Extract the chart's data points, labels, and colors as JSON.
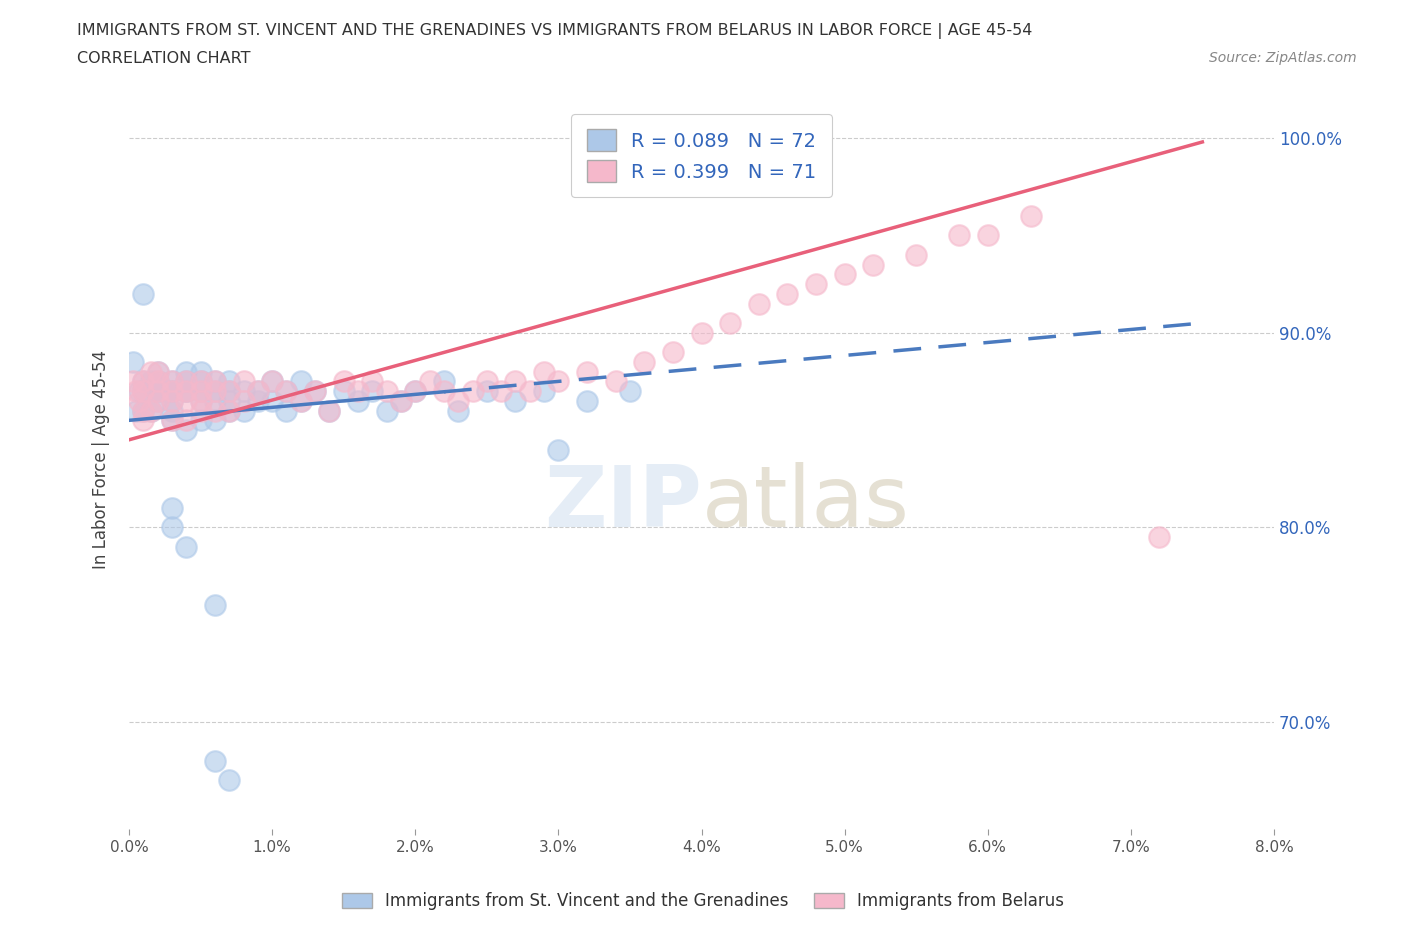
{
  "title_line1": "IMMIGRANTS FROM ST. VINCENT AND THE GRENADINES VS IMMIGRANTS FROM BELARUS IN LABOR FORCE | AGE 45-54",
  "title_line2": "CORRELATION CHART",
  "source_text": "Source: ZipAtlas.com",
  "ylabel": "In Labor Force | Age 45-54",
  "xmin": 0.0,
  "xmax": 0.08,
  "ymin": 0.645,
  "ymax": 1.025,
  "blue_R": 0.089,
  "blue_N": 72,
  "pink_R": 0.399,
  "pink_N": 71,
  "blue_color": "#adc8e8",
  "pink_color": "#f5b8cb",
  "blue_line_color": "#4a7abf",
  "pink_line_color": "#e8607a",
  "legend_text_color": "#3366bb",
  "blue_label": "Immigrants from St. Vincent and the Grenadines",
  "pink_label": "Immigrants from Belarus",
  "yticks": [
    0.7,
    0.8,
    0.9,
    1.0
  ],
  "xticks": [
    0.0,
    0.01,
    0.02,
    0.03,
    0.04,
    0.05,
    0.06,
    0.07,
    0.08
  ],
  "blue_line_x0": 0.0,
  "blue_line_y0": 0.855,
  "blue_line_x1": 0.075,
  "blue_line_y1": 0.905,
  "blue_line_solid_end": 0.022,
  "pink_line_x0": 0.0,
  "pink_line_y0": 0.845,
  "pink_line_x1": 0.075,
  "pink_line_y1": 0.998,
  "blue_pts_x": [
    0.0003,
    0.0005,
    0.0007,
    0.001,
    0.001,
    0.001,
    0.001,
    0.0015,
    0.0015,
    0.002,
    0.002,
    0.002,
    0.002,
    0.002,
    0.0025,
    0.003,
    0.003,
    0.003,
    0.003,
    0.003,
    0.003,
    0.004,
    0.004,
    0.004,
    0.004,
    0.004,
    0.005,
    0.005,
    0.005,
    0.005,
    0.005,
    0.006,
    0.006,
    0.006,
    0.006,
    0.007,
    0.007,
    0.007,
    0.007,
    0.008,
    0.008,
    0.009,
    0.009,
    0.01,
    0.01,
    0.011,
    0.011,
    0.012,
    0.012,
    0.013,
    0.014,
    0.015,
    0.016,
    0.017,
    0.018,
    0.019,
    0.02,
    0.022,
    0.023,
    0.025,
    0.027,
    0.029,
    0.032,
    0.035,
    0.003,
    0.003,
    0.004,
    0.006,
    0.006,
    0.007,
    0.03
  ],
  "blue_pts_y": [
    0.885,
    0.86,
    0.87,
    0.875,
    0.92,
    0.87,
    0.86,
    0.86,
    0.875,
    0.87,
    0.875,
    0.88,
    0.87,
    0.865,
    0.87,
    0.875,
    0.87,
    0.865,
    0.86,
    0.87,
    0.855,
    0.875,
    0.87,
    0.88,
    0.87,
    0.85,
    0.87,
    0.88,
    0.875,
    0.865,
    0.855,
    0.87,
    0.875,
    0.865,
    0.855,
    0.87,
    0.865,
    0.86,
    0.875,
    0.87,
    0.86,
    0.865,
    0.87,
    0.875,
    0.865,
    0.87,
    0.86,
    0.875,
    0.865,
    0.87,
    0.86,
    0.87,
    0.865,
    0.87,
    0.86,
    0.865,
    0.87,
    0.875,
    0.86,
    0.87,
    0.865,
    0.87,
    0.865,
    0.87,
    0.81,
    0.8,
    0.79,
    0.68,
    0.76,
    0.67,
    0.84
  ],
  "pink_pts_x": [
    0.0003,
    0.0005,
    0.0007,
    0.001,
    0.001,
    0.001,
    0.001,
    0.0015,
    0.0015,
    0.002,
    0.002,
    0.002,
    0.002,
    0.003,
    0.003,
    0.003,
    0.003,
    0.004,
    0.004,
    0.004,
    0.004,
    0.005,
    0.005,
    0.005,
    0.005,
    0.006,
    0.006,
    0.006,
    0.007,
    0.007,
    0.008,
    0.008,
    0.009,
    0.01,
    0.011,
    0.012,
    0.013,
    0.014,
    0.015,
    0.016,
    0.017,
    0.018,
    0.019,
    0.02,
    0.021,
    0.022,
    0.023,
    0.024,
    0.025,
    0.026,
    0.027,
    0.028,
    0.029,
    0.03,
    0.032,
    0.034,
    0.036,
    0.038,
    0.04,
    0.042,
    0.044,
    0.046,
    0.048,
    0.05,
    0.052,
    0.055,
    0.058,
    0.06,
    0.063,
    0.072
  ],
  "pink_pts_y": [
    0.875,
    0.87,
    0.865,
    0.875,
    0.87,
    0.86,
    0.855,
    0.88,
    0.86,
    0.88,
    0.87,
    0.865,
    0.875,
    0.87,
    0.865,
    0.875,
    0.855,
    0.87,
    0.875,
    0.865,
    0.855,
    0.87,
    0.86,
    0.875,
    0.865,
    0.875,
    0.86,
    0.87,
    0.86,
    0.87,
    0.865,
    0.875,
    0.87,
    0.875,
    0.87,
    0.865,
    0.87,
    0.86,
    0.875,
    0.87,
    0.875,
    0.87,
    0.865,
    0.87,
    0.875,
    0.87,
    0.865,
    0.87,
    0.875,
    0.87,
    0.875,
    0.87,
    0.88,
    0.875,
    0.88,
    0.875,
    0.885,
    0.89,
    0.9,
    0.905,
    0.915,
    0.92,
    0.925,
    0.93,
    0.935,
    0.94,
    0.95,
    0.95,
    0.96,
    0.795
  ]
}
